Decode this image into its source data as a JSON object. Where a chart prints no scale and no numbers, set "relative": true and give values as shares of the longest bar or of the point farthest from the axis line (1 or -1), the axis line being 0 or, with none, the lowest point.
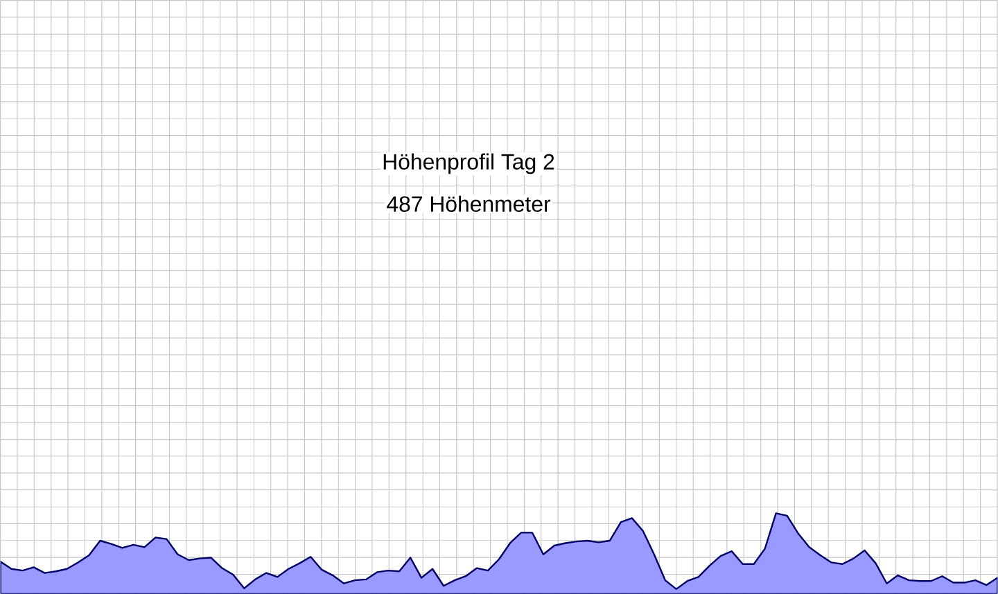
{
  "chart_data": {
    "type": "area",
    "title": "Höhenprofil Tag 2",
    "subtitle": "487 Höhenmeter",
    "relative": true,
    "grid": true,
    "categories": [
      null,
      null,
      null,
      null,
      null,
      null,
      null,
      null,
      null,
      null,
      null,
      null,
      null,
      null,
      null,
      null,
      null,
      null,
      null,
      null,
      null,
      null,
      null,
      null,
      null,
      null,
      null,
      null,
      null,
      null,
      null,
      null,
      null,
      null,
      null,
      null,
      null,
      null,
      null,
      null,
      null,
      null,
      null,
      null,
      null,
      null,
      null,
      null,
      null,
      null,
      null,
      null,
      null,
      null,
      null,
      null,
      null,
      null,
      null,
      null,
      null,
      null,
      null,
      null,
      null,
      null,
      null,
      null,
      null,
      null,
      null,
      null,
      null,
      null,
      null,
      null,
      null,
      null,
      null,
      null,
      null,
      null,
      null,
      null,
      null,
      null,
      null,
      null,
      null,
      null,
      null
    ],
    "series": [
      {
        "color": "#9999ff",
        "values": [
          0.4,
          0.31,
          0.29,
          0.33,
          0.26,
          0.28,
          0.31,
          0.39,
          0.48,
          0.66,
          0.62,
          0.57,
          0.61,
          0.58,
          0.7,
          0.68,
          0.49,
          0.42,
          0.44,
          0.45,
          0.32,
          0.24,
          0.07,
          0.18,
          0.26,
          0.21,
          0.31,
          0.38,
          0.46,
          0.3,
          0.23,
          0.13,
          0.17,
          0.18,
          0.27,
          0.29,
          0.28,
          0.45,
          0.2,
          0.31,
          0.1,
          0.17,
          0.22,
          0.32,
          0.29,
          0.43,
          0.63,
          0.76,
          0.76,
          0.49,
          0.6,
          0.63,
          0.65,
          0.66,
          0.64,
          0.66,
          0.89,
          0.94,
          0.78,
          0.49,
          0.17,
          0.06,
          0.16,
          0.21,
          0.35,
          0.47,
          0.53,
          0.37,
          0.37,
          0.56,
          1,
          0.97,
          0.75,
          0.58,
          0.48,
          0.39,
          0.37,
          0.44,
          0.54,
          0.38,
          0.13,
          0.23,
          0.17,
          0.16,
          0.16,
          0.22,
          0.14,
          0.14,
          0.17,
          0.11,
          0.2
        ]
      }
    ]
  }
}
